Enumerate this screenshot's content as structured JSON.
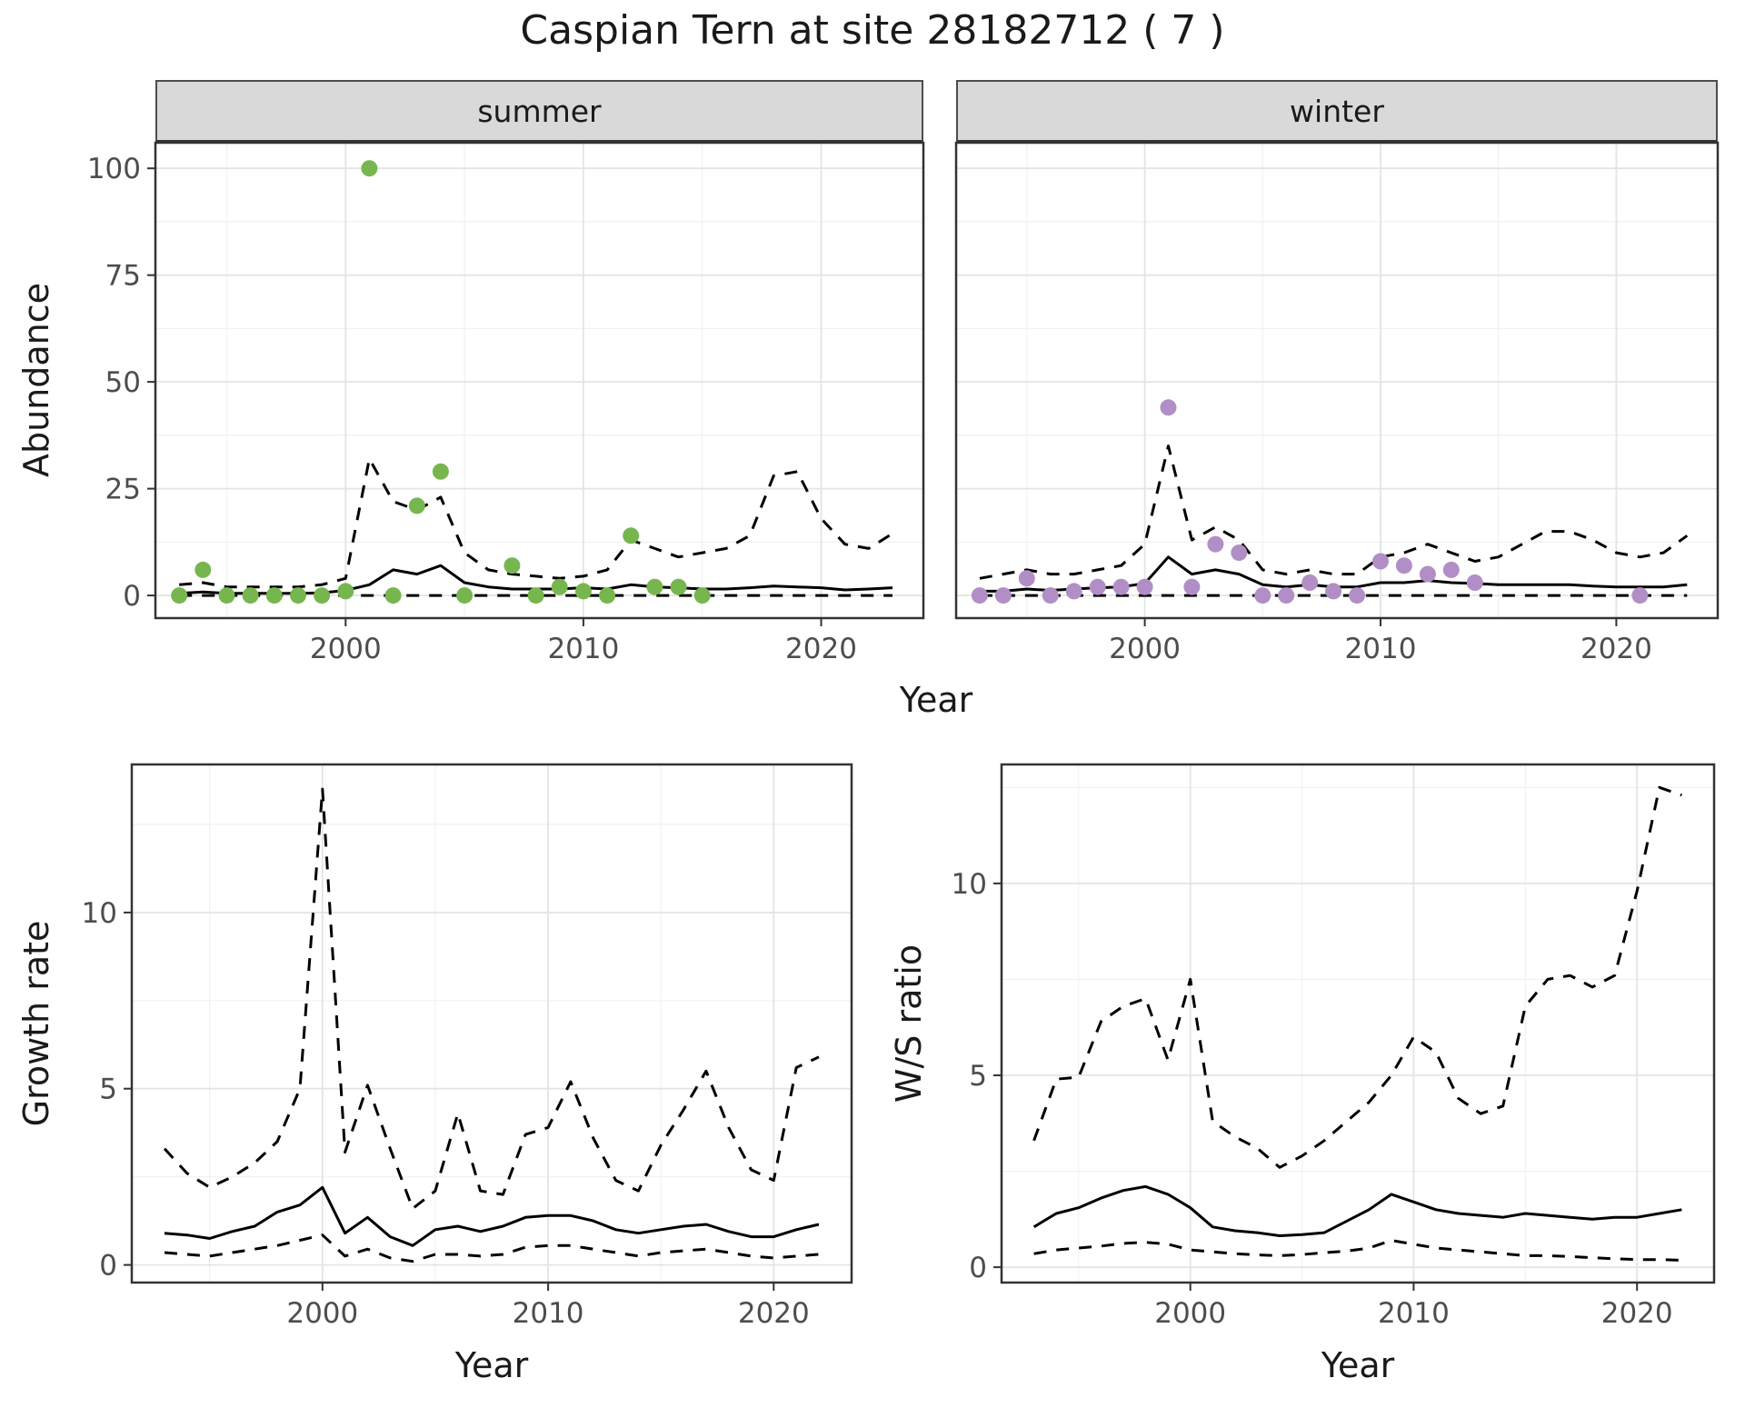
{
  "title": "Caspian Tern at site 28182712 ( 7 )",
  "top_row": {
    "ylabel": "Abundance",
    "xlabel": "Year",
    "facets": [
      {
        "label": "summer"
      },
      {
        "label": "winter"
      }
    ]
  },
  "bottom_row": {
    "left": {
      "ylabel": "Growth rate",
      "xlabel": "Year"
    },
    "right": {
      "ylabel": "W/S ratio",
      "xlabel": "Year"
    }
  },
  "colors": {
    "summer_point": "#77b64f",
    "winter_point": "#b18fc6",
    "line": "#000000",
    "strip_bg": "#d9d9d9",
    "grid_major": "#e4e4e4",
    "grid_minor": "#f1f1f1",
    "panel_border": "#333333",
    "tick_text": "#4d4d4d",
    "text": "#1a1a1a"
  },
  "chart_data": [
    {
      "id": "abundance_summer",
      "type": "line",
      "facet": "summer",
      "xlabel": "Year",
      "ylabel": "Abundance",
      "xlim": [
        1992,
        2024.3
      ],
      "ylim": [
        -5.3,
        106
      ],
      "xticks": [
        2000,
        2010,
        2020
      ],
      "xticks_minor": [
        1995,
        2005,
        2015
      ],
      "yticks": [
        0,
        25,
        50,
        75,
        100
      ],
      "yticks_minor": [
        12.5,
        37.5,
        62.5,
        87.5
      ],
      "point_color_key": "summer_point",
      "points": {
        "x": [
          1993,
          1994,
          1995,
          1996,
          1997,
          1998,
          1999,
          2000,
          2001,
          2002,
          2003,
          2004,
          2005,
          2007,
          2008,
          2009,
          2010,
          2011,
          2012,
          2013,
          2014,
          2015
        ],
        "y": [
          0,
          6,
          0,
          0,
          0,
          0,
          0,
          1,
          100,
          0,
          21,
          29,
          0,
          7,
          0,
          2,
          1,
          0,
          14,
          2,
          2,
          0
        ]
      },
      "lines": [
        {
          "name": "median",
          "style": "solid",
          "x": [
            1993,
            1994,
            1995,
            1996,
            1997,
            1998,
            1999,
            2000,
            2001,
            2002,
            2003,
            2004,
            2005,
            2006,
            2007,
            2008,
            2009,
            2010,
            2011,
            2012,
            2013,
            2014,
            2015,
            2016,
            2017,
            2018,
            2019,
            2020,
            2021,
            2022,
            2023
          ],
          "y": [
            0.5,
            0.8,
            0.5,
            0.5,
            0.5,
            0.5,
            0.6,
            1.2,
            2.5,
            6,
            5,
            7,
            3,
            2,
            1.5,
            1.5,
            1.5,
            1.8,
            1.5,
            2.5,
            2,
            1.8,
            1.5,
            1.5,
            1.8,
            2.2,
            2,
            1.8,
            1.3,
            1.5,
            1.8
          ]
        },
        {
          "name": "upper_ci",
          "style": "dashed",
          "x": [
            1993,
            1994,
            1995,
            1996,
            1997,
            1998,
            1999,
            2000,
            2001,
            2002,
            2003,
            2004,
            2005,
            2006,
            2007,
            2008,
            2009,
            2010,
            2011,
            2012,
            2013,
            2014,
            2015,
            2016,
            2017,
            2018,
            2019,
            2020,
            2021,
            2022,
            2023
          ],
          "y": [
            2.5,
            3,
            2,
            2,
            2,
            2,
            2.5,
            4,
            32,
            22,
            20,
            23,
            10,
            6,
            5,
            4.5,
            4,
            4.5,
            6,
            13,
            11,
            9,
            10,
            11,
            14,
            28,
            29,
            18,
            12,
            11,
            14.5
          ]
        },
        {
          "name": "lower_ci",
          "style": "dashed",
          "x": [
            1993,
            1994,
            1995,
            1996,
            1997,
            1998,
            1999,
            2000,
            2001,
            2002,
            2003,
            2004,
            2005,
            2006,
            2007,
            2008,
            2009,
            2010,
            2011,
            2012,
            2013,
            2014,
            2015,
            2016,
            2017,
            2018,
            2019,
            2020,
            2021,
            2022,
            2023
          ],
          "y": [
            0,
            0,
            0,
            0,
            0,
            0,
            0,
            0,
            0,
            0,
            0,
            0,
            0,
            0,
            0,
            0,
            0,
            0,
            0,
            0,
            0,
            0,
            0,
            0,
            0,
            0,
            0,
            0,
            0,
            0,
            0
          ]
        }
      ]
    },
    {
      "id": "abundance_winter",
      "type": "line",
      "facet": "winter",
      "xlabel": "Year",
      "ylabel": "Abundance",
      "xlim": [
        1992,
        2024.3
      ],
      "ylim": [
        -5.3,
        106
      ],
      "xticks": [
        2000,
        2010,
        2020
      ],
      "xticks_minor": [
        1995,
        2005,
        2015
      ],
      "yticks": [
        0,
        25,
        50,
        75,
        100
      ],
      "yticks_minor": [
        12.5,
        37.5,
        62.5,
        87.5
      ],
      "point_color_key": "winter_point",
      "points": {
        "x": [
          1993,
          1994,
          1995,
          1996,
          1997,
          1998,
          1999,
          2000,
          2001,
          2002,
          2003,
          2004,
          2005,
          2006,
          2007,
          2008,
          2009,
          2010,
          2011,
          2012,
          2013,
          2014,
          2021
        ],
        "y": [
          0,
          0,
          4,
          0,
          1,
          2,
          2,
          2,
          44,
          2,
          12,
          10,
          0,
          0,
          3,
          1,
          0,
          8,
          7,
          5,
          6,
          3,
          0
        ]
      },
      "lines": [
        {
          "name": "median",
          "style": "solid",
          "x": [
            1993,
            1994,
            1995,
            1996,
            1997,
            1998,
            1999,
            2000,
            2001,
            2002,
            2003,
            2004,
            2005,
            2006,
            2007,
            2008,
            2009,
            2010,
            2011,
            2012,
            2013,
            2014,
            2015,
            2016,
            2017,
            2018,
            2019,
            2020,
            2021,
            2022,
            2023
          ],
          "y": [
            1,
            1,
            1.5,
            1.2,
            1.5,
            1.8,
            2,
            2.8,
            9,
            5,
            6,
            5,
            2.5,
            2,
            2.5,
            2,
            2,
            3,
            3,
            3.5,
            3,
            2.8,
            2.5,
            2.5,
            2.5,
            2.5,
            2.2,
            2,
            2,
            2,
            2.5
          ]
        },
        {
          "name": "upper_ci",
          "style": "dashed",
          "x": [
            1993,
            1994,
            1995,
            1996,
            1997,
            1998,
            1999,
            2000,
            2001,
            2002,
            2003,
            2004,
            2005,
            2006,
            2007,
            2008,
            2009,
            2010,
            2011,
            2012,
            2013,
            2014,
            2015,
            2016,
            2017,
            2018,
            2019,
            2020,
            2021,
            2022,
            2023
          ],
          "y": [
            4,
            5,
            6,
            5,
            5,
            6,
            7,
            12,
            35,
            13,
            16,
            13,
            6,
            5,
            6,
            5,
            5,
            9,
            10,
            12,
            10,
            8,
            9,
            12,
            15,
            15,
            13,
            10,
            9,
            10,
            14
          ]
        },
        {
          "name": "lower_ci",
          "style": "dashed",
          "x": [
            1993,
            1994,
            1995,
            1996,
            1997,
            1998,
            1999,
            2000,
            2001,
            2002,
            2003,
            2004,
            2005,
            2006,
            2007,
            2008,
            2009,
            2010,
            2011,
            2012,
            2013,
            2014,
            2015,
            2016,
            2017,
            2018,
            2019,
            2020,
            2021,
            2022,
            2023
          ],
          "y": [
            0,
            0,
            0,
            0,
            0,
            0,
            0,
            0,
            0,
            0,
            0,
            0,
            0,
            0,
            0,
            0,
            0,
            0,
            0,
            0,
            0,
            0,
            0,
            0,
            0,
            0,
            0,
            0,
            0,
            0,
            0
          ]
        }
      ]
    },
    {
      "id": "growth_rate",
      "type": "line",
      "xlabel": "Year",
      "ylabel": "Growth rate",
      "xlim": [
        1991.55,
        2023.45
      ],
      "ylim": [
        -0.5,
        14.2
      ],
      "xticks": [
        2000,
        2010,
        2020
      ],
      "xticks_minor": [
        1995,
        2005,
        2015
      ],
      "yticks": [
        0,
        5,
        10
      ],
      "yticks_minor": [
        2.5,
        7.5,
        12.5
      ],
      "lines": [
        {
          "name": "median",
          "style": "solid",
          "x": [
            1993,
            1994,
            1995,
            1996,
            1997,
            1998,
            1999,
            2000,
            2001,
            2002,
            2003,
            2004,
            2005,
            2006,
            2007,
            2008,
            2009,
            2010,
            2011,
            2012,
            2013,
            2014,
            2015,
            2016,
            2017,
            2018,
            2019,
            2020,
            2021,
            2022
          ],
          "y": [
            0.9,
            0.85,
            0.75,
            0.95,
            1.1,
            1.5,
            1.7,
            2.2,
            0.9,
            1.35,
            0.8,
            0.55,
            1.0,
            1.1,
            0.95,
            1.1,
            1.35,
            1.4,
            1.4,
            1.25,
            1.0,
            0.9,
            1.0,
            1.1,
            1.15,
            0.95,
            0.8,
            0.8,
            1.0,
            1.15
          ]
        },
        {
          "name": "upper_ci",
          "style": "dashed",
          "x": [
            1993,
            1994,
            1995,
            1996,
            1997,
            1998,
            1999,
            2000,
            2001,
            2002,
            2003,
            2004,
            2005,
            2006,
            2007,
            2008,
            2009,
            2010,
            2011,
            2012,
            2013,
            2014,
            2015,
            2016,
            2017,
            2018,
            2019,
            2020,
            2021,
            2022
          ],
          "y": [
            3.3,
            2.6,
            2.2,
            2.5,
            2.9,
            3.5,
            5.0,
            13.5,
            3.2,
            5.1,
            3.3,
            1.6,
            2.1,
            4.3,
            2.1,
            2.0,
            3.7,
            3.9,
            5.2,
            3.6,
            2.4,
            2.1,
            3.4,
            4.4,
            5.5,
            3.9,
            2.7,
            2.4,
            5.6,
            5.9
          ]
        },
        {
          "name": "lower_ci",
          "style": "dashed",
          "x": [
            1993,
            1994,
            1995,
            1996,
            1997,
            1998,
            1999,
            2000,
            2001,
            2002,
            2003,
            2004,
            2005,
            2006,
            2007,
            2008,
            2009,
            2010,
            2011,
            2012,
            2013,
            2014,
            2015,
            2016,
            2017,
            2018,
            2019,
            2020,
            2021,
            2022
          ],
          "y": [
            0.35,
            0.3,
            0.25,
            0.35,
            0.45,
            0.55,
            0.7,
            0.85,
            0.25,
            0.45,
            0.2,
            0.1,
            0.3,
            0.3,
            0.25,
            0.3,
            0.5,
            0.55,
            0.55,
            0.45,
            0.35,
            0.25,
            0.35,
            0.4,
            0.45,
            0.35,
            0.25,
            0.2,
            0.25,
            0.3
          ]
        }
      ]
    },
    {
      "id": "ws_ratio",
      "type": "line",
      "xlabel": "Year",
      "ylabel": "W/S ratio",
      "xlim": [
        1991.55,
        2023.45
      ],
      "ylim": [
        -0.4,
        13.1
      ],
      "xticks": [
        2000,
        2010,
        2020
      ],
      "xticks_minor": [
        1995,
        2005,
        2015
      ],
      "yticks": [
        0,
        5,
        10
      ],
      "yticks_minor": [
        2.5,
        7.5,
        12.5
      ],
      "lines": [
        {
          "name": "median",
          "style": "solid",
          "x": [
            1993,
            1994,
            1995,
            1996,
            1997,
            1998,
            1999,
            2000,
            2001,
            2002,
            2003,
            2004,
            2005,
            2006,
            2007,
            2008,
            2009,
            2010,
            2011,
            2012,
            2013,
            2014,
            2015,
            2016,
            2017,
            2018,
            2019,
            2020,
            2021,
            2022
          ],
          "y": [
            1.05,
            1.4,
            1.55,
            1.8,
            2.0,
            2.1,
            1.9,
            1.55,
            1.05,
            0.95,
            0.9,
            0.82,
            0.85,
            0.9,
            1.2,
            1.5,
            1.9,
            1.7,
            1.5,
            1.4,
            1.35,
            1.3,
            1.4,
            1.35,
            1.3,
            1.25,
            1.3,
            1.3,
            1.4,
            1.5
          ]
        },
        {
          "name": "upper_ci",
          "style": "dashed",
          "x": [
            1993,
            1994,
            1995,
            1996,
            1997,
            1998,
            1999,
            2000,
            2001,
            2002,
            2003,
            2004,
            2005,
            2006,
            2007,
            2008,
            2009,
            2010,
            2011,
            2012,
            2013,
            2014,
            2015,
            2016,
            2017,
            2018,
            2019,
            2020,
            2021,
            2022
          ],
          "y": [
            3.3,
            4.9,
            4.95,
            6.4,
            6.8,
            7.0,
            5.4,
            7.5,
            3.8,
            3.4,
            3.1,
            2.6,
            2.9,
            3.3,
            3.8,
            4.3,
            5.0,
            6.0,
            5.6,
            4.4,
            4.0,
            4.2,
            6.8,
            7.5,
            7.6,
            7.3,
            7.6,
            9.8,
            12.5,
            12.3
          ]
        },
        {
          "name": "lower_ci",
          "style": "dashed",
          "x": [
            1993,
            1994,
            1995,
            1996,
            1997,
            1998,
            1999,
            2000,
            2001,
            2002,
            2003,
            2004,
            2005,
            2006,
            2007,
            2008,
            2009,
            2010,
            2011,
            2012,
            2013,
            2014,
            2015,
            2016,
            2017,
            2018,
            2019,
            2020,
            2021,
            2022
          ],
          "y": [
            0.35,
            0.45,
            0.5,
            0.55,
            0.62,
            0.65,
            0.6,
            0.45,
            0.4,
            0.35,
            0.32,
            0.3,
            0.33,
            0.38,
            0.42,
            0.5,
            0.7,
            0.6,
            0.5,
            0.45,
            0.4,
            0.35,
            0.3,
            0.3,
            0.28,
            0.25,
            0.22,
            0.2,
            0.2,
            0.18
          ]
        }
      ]
    }
  ]
}
